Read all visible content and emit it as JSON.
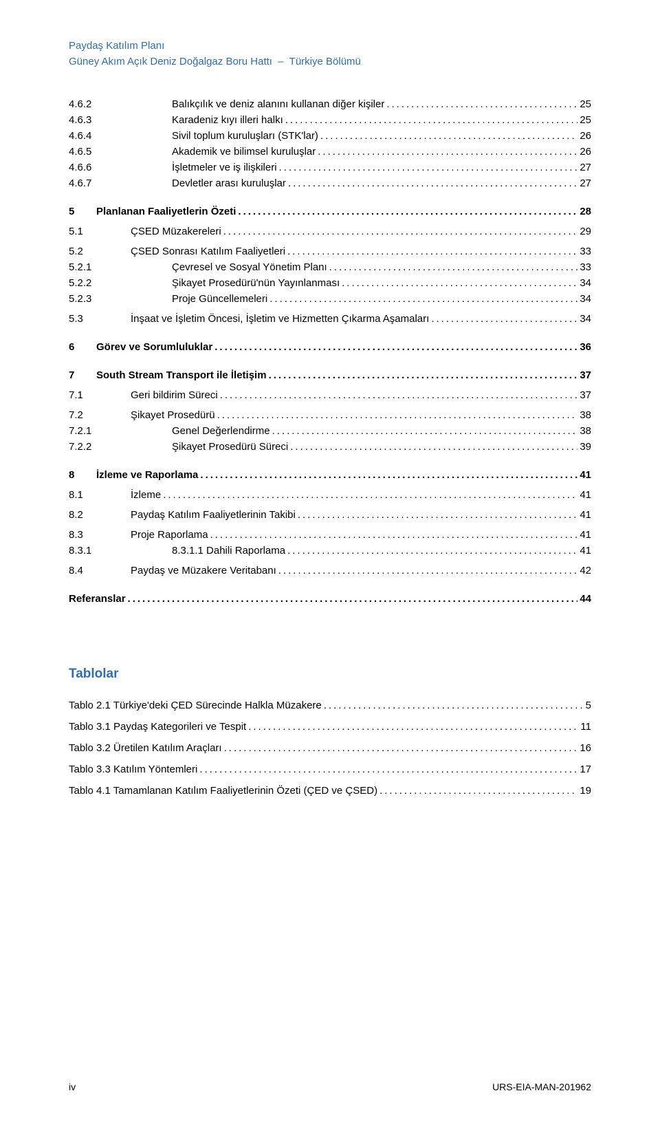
{
  "header": {
    "line1": "Paydaş Katılım Planı",
    "line2a": "Güney Akım Açık Deniz Doğalgaz Boru Hattı",
    "line2b": "Türkiye Bölümü"
  },
  "toc": [
    {
      "indent": 2,
      "num": "4.6.2",
      "label": "Balıkçılık ve deniz alanını kullanan diğer kişiler",
      "page": "25",
      "bold": false
    },
    {
      "indent": 2,
      "num": "4.6.3",
      "label": "Karadeniz kıyı illeri halkı",
      "page": "25",
      "bold": false
    },
    {
      "indent": 2,
      "num": "4.6.4",
      "label": "Sivil toplum kuruluşları (STK'lar)",
      "page": "26",
      "bold": false
    },
    {
      "indent": 2,
      "num": "4.6.5",
      "label": "Akademik ve bilimsel kuruluşlar",
      "page": "26",
      "bold": false
    },
    {
      "indent": 2,
      "num": "4.6.6",
      "label": "İşletmeler ve iş ilişkileri",
      "page": "27",
      "bold": false
    },
    {
      "indent": 2,
      "num": "4.6.7",
      "label": "Devletler arası kuruluşlar",
      "page": "27",
      "bold": false
    },
    {
      "spacer": "md"
    },
    {
      "indent": 0,
      "num": "5",
      "label": "Planlanan Faaliyetlerin Özeti",
      "page": "28",
      "bold": true
    },
    {
      "spacer": "sm"
    },
    {
      "indent": 1,
      "num": "5.1",
      "label": "ÇSED Müzakereleri",
      "page": "29",
      "bold": false
    },
    {
      "spacer": "sm"
    },
    {
      "indent": 1,
      "num": "5.2",
      "label": "ÇSED Sonrası Katılım Faaliyetleri",
      "page": "33",
      "bold": false
    },
    {
      "indent": 2,
      "num": "5.2.1",
      "label": "Çevresel ve Sosyal Yönetim Planı",
      "page": "33",
      "bold": false
    },
    {
      "indent": 2,
      "num": "5.2.2",
      "label": "Şikayet Prosedürü'nün Yayınlanması",
      "page": "34",
      "bold": false
    },
    {
      "indent": 2,
      "num": "5.2.3",
      "label": "Proje Güncellemeleri",
      "page": "34",
      "bold": false
    },
    {
      "spacer": "sm"
    },
    {
      "indent": 1,
      "num": "5.3",
      "label": "İnşaat ve İşletim Öncesi, İşletim ve Hizmetten Çıkarma Aşamaları",
      "page": "34",
      "bold": false
    },
    {
      "spacer": "md"
    },
    {
      "indent": 0,
      "num": "6",
      "label": "Görev ve Sorumluluklar",
      "page": "36",
      "bold": true
    },
    {
      "spacer": "md"
    },
    {
      "indent": 0,
      "num": "7",
      "label": "South Stream Transport ile İletişim",
      "page": "37",
      "bold": true
    },
    {
      "spacer": "sm"
    },
    {
      "indent": 1,
      "num": "7.1",
      "label": "Geri bildirim Süreci",
      "page": "37",
      "bold": false
    },
    {
      "spacer": "sm"
    },
    {
      "indent": 1,
      "num": "7.2",
      "label": "Şikayet Prosedürü",
      "page": "38",
      "bold": false
    },
    {
      "indent": 2,
      "num": "7.2.1",
      "label": "Genel Değerlendirme",
      "page": "38",
      "bold": false
    },
    {
      "indent": 2,
      "num": "7.2.2",
      "label": "Şikayet Prosedürü Süreci",
      "page": "39",
      "bold": false
    },
    {
      "spacer": "md"
    },
    {
      "indent": 0,
      "num": "8",
      "label": "İzleme ve Raporlama",
      "page": "41",
      "bold": true
    },
    {
      "spacer": "sm"
    },
    {
      "indent": 1,
      "num": "8.1",
      "label": "İzleme",
      "page": "41",
      "bold": false
    },
    {
      "spacer": "sm"
    },
    {
      "indent": 1,
      "num": "8.2",
      "label": "Paydaş Katılım Faaliyetlerinin Takibi",
      "page": "41",
      "bold": false
    },
    {
      "spacer": "sm"
    },
    {
      "indent": 1,
      "num": "8.3",
      "label": "Proje Raporlama",
      "page": "41",
      "bold": false
    },
    {
      "indent": 3,
      "num": "8.3.1",
      "label": "8.3.1.1 Dahili Raporlama",
      "page": "41",
      "bold": false
    },
    {
      "spacer": "sm"
    },
    {
      "indent": 1,
      "num": "8.4",
      "label": "Paydaş ve Müzakere Veritabanı",
      "page": "42",
      "bold": false
    },
    {
      "spacer": "md"
    },
    {
      "indent": -1,
      "num": "",
      "label": "Referanslar",
      "page": "44",
      "bold": true
    }
  ],
  "tables_heading": "Tablolar",
  "tables": [
    {
      "label": "Tablo 2.1 Türkiye'deki ÇED Sürecinde Halkla Müzakere",
      "page": "5"
    },
    {
      "label": "Tablo 3.1 Paydaş Kategorileri ve Tespit",
      "page": "11"
    },
    {
      "label": "Tablo 3.2 Üretilen Katılım Araçları",
      "page": "16"
    },
    {
      "label": "Tablo 3.3 Katılım Yöntemleri",
      "page": "17"
    },
    {
      "label": "Tablo 4.1 Tamamlanan Katılım Faaliyetlerinin Özeti (ÇED ve ÇSED)",
      "page": "19"
    }
  ],
  "footer": {
    "left": "iv",
    "right": "URS-EIA-MAN-201962"
  }
}
